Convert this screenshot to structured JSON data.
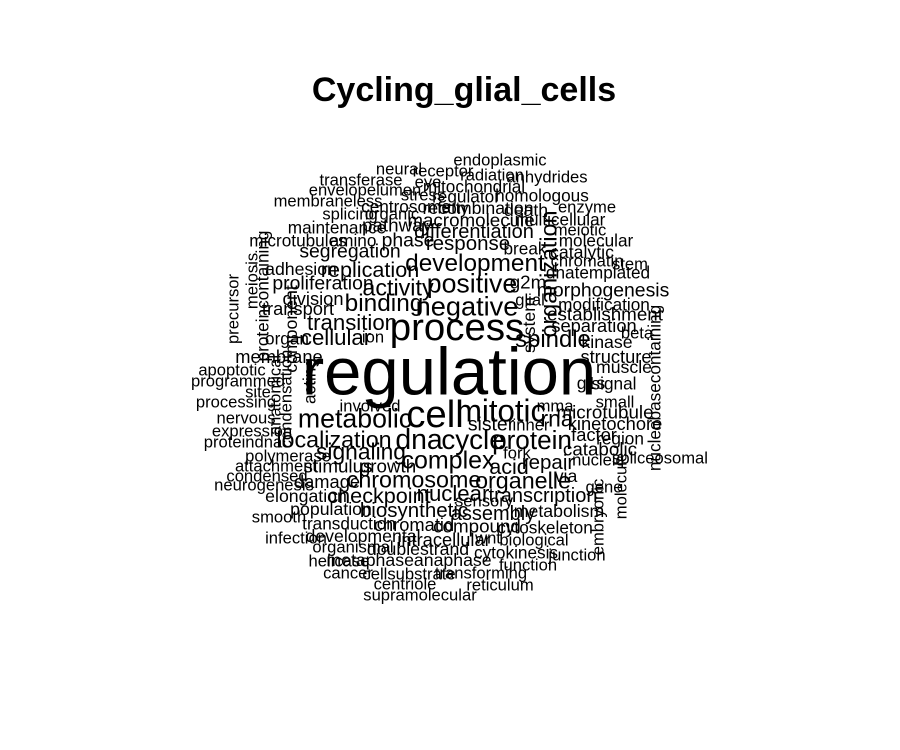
{
  "title": "Cycling_glial_cells",
  "words": [
    {
      "text": "regulation",
      "weight": 1.0,
      "vertical": false
    },
    {
      "text": "process",
      "weight": 0.49,
      "vertical": false
    },
    {
      "text": "cell",
      "weight": 0.49,
      "vertical": false
    },
    {
      "text": "mitotic",
      "weight": 0.36,
      "vertical": false
    },
    {
      "text": "dna",
      "weight": 0.31,
      "vertical": false
    },
    {
      "text": "cycle",
      "weight": 0.3,
      "vertical": false
    },
    {
      "text": "metabolic",
      "weight": 0.28,
      "vertical": false
    },
    {
      "text": "negative",
      "weight": 0.29,
      "vertical": false
    },
    {
      "text": "positive",
      "weight": 0.28,
      "vertical": false
    },
    {
      "text": "protein",
      "weight": 0.27,
      "vertical": false
    },
    {
      "text": "development",
      "weight": 0.24,
      "vertical": false
    },
    {
      "text": "binding",
      "weight": 0.24,
      "vertical": false
    },
    {
      "text": "complex",
      "weight": 0.25,
      "vertical": false
    },
    {
      "text": "chromosome",
      "weight": 0.22,
      "vertical": false
    },
    {
      "text": "localization",
      "weight": 0.22,
      "vertical": false
    },
    {
      "text": "spindle",
      "weight": 0.23,
      "vertical": false
    },
    {
      "text": "organization",
      "weight": 0.22,
      "vertical": true
    },
    {
      "text": "activity",
      "weight": 0.22,
      "vertical": false
    },
    {
      "text": "organelle",
      "weight": 0.22,
      "vertical": false
    },
    {
      "text": "rna",
      "weight": 0.21,
      "vertical": false
    },
    {
      "text": "signaling",
      "weight": 0.21,
      "vertical": false
    },
    {
      "text": "cellular",
      "weight": 0.2,
      "vertical": false
    },
    {
      "text": "transition",
      "weight": 0.2,
      "vertical": false
    },
    {
      "text": "nuclear",
      "weight": 0.2,
      "vertical": false
    },
    {
      "text": "replication",
      "weight": 0.19,
      "vertical": false
    },
    {
      "text": "checkpoint",
      "weight": 0.19,
      "vertical": false
    },
    {
      "text": "acid",
      "weight": 0.19,
      "vertical": false
    },
    {
      "text": "repair",
      "weight": 0.17,
      "vertical": false
    },
    {
      "text": "response",
      "weight": 0.17,
      "vertical": false
    },
    {
      "text": "biosynthetic",
      "weight": 0.17,
      "vertical": false
    },
    {
      "text": "assembly",
      "weight": 0.16,
      "vertical": false
    },
    {
      "text": "transcription",
      "weight": 0.16,
      "vertical": false
    },
    {
      "text": "differentiation",
      "weight": 0.16,
      "vertical": false
    },
    {
      "text": "proliferation",
      "weight": 0.15,
      "vertical": false
    },
    {
      "text": "morphogenesis",
      "weight": 0.15,
      "vertical": false
    },
    {
      "text": "segregation",
      "weight": 0.15,
      "vertical": false
    },
    {
      "text": "phase",
      "weight": 0.15,
      "vertical": false
    },
    {
      "text": "sister",
      "weight": 0.15,
      "vertical": false
    },
    {
      "text": "catabolic",
      "weight": 0.14,
      "vertical": false
    },
    {
      "text": "compound",
      "weight": 0.14,
      "vertical": false
    },
    {
      "text": "pathway",
      "weight": 0.14,
      "vertical": false
    },
    {
      "text": "microtubule",
      "weight": 0.14,
      "vertical": false
    },
    {
      "text": "macromolecule",
      "weight": 0.14,
      "vertical": false
    },
    {
      "text": "establishment",
      "weight": 0.14,
      "vertical": false
    },
    {
      "text": "g2m",
      "weight": 0.14,
      "vertical": false
    },
    {
      "text": "growth",
      "weight": 0.14,
      "vertical": false
    },
    {
      "text": "stimulus",
      "weight": 0.14,
      "vertical": false
    },
    {
      "text": "chromatid",
      "weight": 0.13,
      "vertical": false
    },
    {
      "text": "division",
      "weight": 0.13,
      "vertical": false
    },
    {
      "text": "membrane",
      "weight": 0.13,
      "vertical": false
    },
    {
      "text": "transport",
      "weight": 0.13,
      "vertical": false
    },
    {
      "text": "separation",
      "weight": 0.13,
      "vertical": false
    },
    {
      "text": "structure",
      "weight": 0.13,
      "vertical": false
    },
    {
      "text": "factor",
      "weight": 0.13,
      "vertical": false
    },
    {
      "text": "damage",
      "weight": 0.13,
      "vertical": false
    },
    {
      "text": "kinetochore",
      "weight": 0.13,
      "vertical": false
    },
    {
      "text": "intracellular",
      "weight": 0.13,
      "vertical": false
    },
    {
      "text": "kinase",
      "weight": 0.12,
      "vertical": false
    },
    {
      "text": "metabolism",
      "weight": 0.12,
      "vertical": false
    },
    {
      "text": "developmental",
      "weight": 0.12,
      "vertical": false
    },
    {
      "text": "elongation",
      "weight": 0.12,
      "vertical": false
    },
    {
      "text": "population",
      "weight": 0.12,
      "vertical": false
    },
    {
      "text": "component",
      "weight": 0.12,
      "vertical": true
    },
    {
      "text": "g1s",
      "weight": 0.12,
      "vertical": false
    },
    {
      "text": "system",
      "weight": 0.12,
      "vertical": true
    },
    {
      "text": "via",
      "weight": 0.12,
      "vertical": false
    },
    {
      "text": "catalytic",
      "weight": 0.12,
      "vertical": false
    },
    {
      "text": "muscle",
      "weight": 0.12,
      "vertical": false
    },
    {
      "text": "adhesion",
      "weight": 0.12,
      "vertical": false
    },
    {
      "text": "death",
      "weight": 0.12,
      "vertical": false
    },
    {
      "text": "recombination",
      "weight": 0.12,
      "vertical": false
    },
    {
      "text": "doublestrand",
      "weight": 0.12,
      "vertical": false
    },
    {
      "text": "metaphaseanaphase",
      "weight": 0.12,
      "vertical": false
    },
    {
      "text": "break",
      "weight": 0.11,
      "vertical": false
    },
    {
      "text": "dnatemplated",
      "weight": 0.11,
      "vertical": false
    },
    {
      "text": "acting",
      "weight": 0.11,
      "vertical": true
    },
    {
      "text": "region",
      "weight": 0.11,
      "vertical": false
    },
    {
      "text": "proteincontaining",
      "weight": 0.11,
      "vertical": true
    },
    {
      "text": "nucleobasecontaining",
      "weight": 0.11,
      "vertical": true
    },
    {
      "text": "mitochondrial",
      "weight": 0.11,
      "vertical": false
    },
    {
      "text": "signal",
      "weight": 0.11,
      "vertical": false
    },
    {
      "text": "organ",
      "weight": 0.11,
      "vertical": false
    },
    {
      "text": "modification",
      "weight": 0.11,
      "vertical": false
    },
    {
      "text": "homologous",
      "weight": 0.11,
      "vertical": false
    },
    {
      "text": "multicellular",
      "weight": 0.11,
      "vertical": false
    },
    {
      "text": "molecular",
      "weight": 0.11,
      "vertical": false
    },
    {
      "text": "regulator",
      "weight": 0.11,
      "vertical": false
    },
    {
      "text": "centrosome",
      "weight": 0.11,
      "vertical": false
    },
    {
      "text": "maintenance",
      "weight": 0.11,
      "vertical": false
    },
    {
      "text": "microtubules",
      "weight": 0.11,
      "vertical": false
    },
    {
      "text": "amino",
      "weight": 0.11,
      "vertical": false
    },
    {
      "text": "cytoskeleton",
      "weight": 0.11,
      "vertical": false
    },
    {
      "text": "transduction",
      "weight": 0.11,
      "vertical": false
    },
    {
      "text": "cytokinesis",
      "weight": 0.11,
      "vertical": false
    },
    {
      "text": "glial",
      "weight": 0.1,
      "vertical": false
    },
    {
      "text": "chromatin",
      "weight": 0.1,
      "vertical": false
    },
    {
      "text": "involved",
      "weight": 0.1,
      "vertical": false
    },
    {
      "text": "neural",
      "weight": 0.1,
      "vertical": false
    },
    {
      "text": "receptor",
      "weight": 0.1,
      "vertical": false
    },
    {
      "text": "endoplasmic",
      "weight": 0.1,
      "vertical": false
    },
    {
      "text": "radiation",
      "weight": 0.1,
      "vertical": false
    },
    {
      "text": "anhydrides",
      "weight": 0.1,
      "vertical": false
    },
    {
      "text": "transferase",
      "weight": 0.1,
      "vertical": false
    },
    {
      "text": "eye",
      "weight": 0.1,
      "vertical": false
    },
    {
      "text": "envelopelumen",
      "weight": 0.1,
      "vertical": false
    },
    {
      "text": "stress",
      "weight": 0.1,
      "vertical": false
    },
    {
      "text": "membraneless",
      "weight": 0.1,
      "vertical": false
    },
    {
      "text": "fatty",
      "weight": 0.1,
      "vertical": false
    },
    {
      "text": "enzyme",
      "weight": 0.1,
      "vertical": false
    },
    {
      "text": "splicing",
      "weight": 0.1,
      "vertical": false
    },
    {
      "text": "organic",
      "weight": 0.1,
      "vertical": false
    },
    {
      "text": "meiotic",
      "weight": 0.1,
      "vertical": false
    },
    {
      "text": "stem",
      "weight": 0.1,
      "vertical": false
    },
    {
      "text": "meiosis",
      "weight": 0.1,
      "vertical": true
    },
    {
      "text": "precursor",
      "weight": 0.1,
      "vertical": true
    },
    {
      "text": "beta",
      "weight": 0.1,
      "vertical": false
    },
    {
      "text": "ion",
      "weight": 0.1,
      "vertical": false
    },
    {
      "text": "apoptotic",
      "weight": 0.1,
      "vertical": false
    },
    {
      "text": "programmed",
      "weight": 0.1,
      "vertical": false
    },
    {
      "text": "anatomical",
      "weight": 0.1,
      "vertical": true
    },
    {
      "text": "condensation",
      "weight": 0.1,
      "vertical": true
    },
    {
      "text": "site",
      "weight": 0.1,
      "vertical": false
    },
    {
      "text": "processing",
      "weight": 0.1,
      "vertical": false
    },
    {
      "text": "mma",
      "weight": 0.1,
      "vertical": false
    },
    {
      "text": "small",
      "weight": 0.1,
      "vertical": false
    },
    {
      "text": "nervous",
      "weight": 0.1,
      "vertical": false
    },
    {
      "text": "inner",
      "weight": 0.1,
      "vertical": false
    },
    {
      "text": "expression",
      "weight": 0.1,
      "vertical": false
    },
    {
      "text": "proteindna",
      "weight": 0.1,
      "vertical": false
    },
    {
      "text": "polymerase",
      "weight": 0.1,
      "vertical": false
    },
    {
      "text": "fork",
      "weight": 0.1,
      "vertical": false
    },
    {
      "text": "nucleic",
      "weight": 0.1,
      "vertical": false
    },
    {
      "text": "spliceosomal",
      "weight": 0.1,
      "vertical": false
    },
    {
      "text": "attachment",
      "weight": 0.1,
      "vertical": false
    },
    {
      "text": "condensed",
      "weight": 0.1,
      "vertical": false
    },
    {
      "text": "neurogenesis",
      "weight": 0.1,
      "vertical": false
    },
    {
      "text": "gene",
      "weight": 0.1,
      "vertical": false
    },
    {
      "text": "molecule",
      "weight": 0.1,
      "vertical": true
    },
    {
      "text": "sensory",
      "weight": 0.1,
      "vertical": false
    },
    {
      "text": "embryonic",
      "weight": 0.1,
      "vertical": true
    },
    {
      "text": "smooth",
      "weight": 0.1,
      "vertical": false
    },
    {
      "text": "wnt",
      "weight": 0.1,
      "vertical": false
    },
    {
      "text": "infection",
      "weight": 0.1,
      "vertical": false
    },
    {
      "text": "biological",
      "weight": 0.1,
      "vertical": false
    },
    {
      "text": "organismal",
      "weight": 0.1,
      "vertical": false
    },
    {
      "text": "junction",
      "weight": 0.1,
      "vertical": false
    },
    {
      "text": "helicase",
      "weight": 0.1,
      "vertical": false
    },
    {
      "text": "function",
      "weight": 0.1,
      "vertical": false
    },
    {
      "text": "cancer",
      "weight": 0.1,
      "vertical": false
    },
    {
      "text": "cellsubstrate",
      "weight": 0.1,
      "vertical": false
    },
    {
      "text": "transforming",
      "weight": 0.1,
      "vertical": false
    },
    {
      "text": "centriole",
      "weight": 0.1,
      "vertical": false
    },
    {
      "text": "reticulum",
      "weight": 0.1,
      "vertical": false
    },
    {
      "text": "supramolecular",
      "weight": 0.1,
      "vertical": false
    }
  ]
}
